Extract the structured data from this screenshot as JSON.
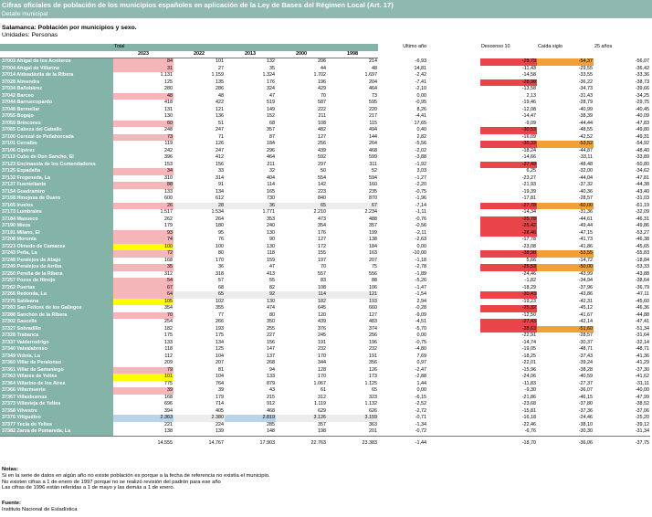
{
  "title": "Cifras oficiales de población de los municipios españoles en aplicación de la Ley de Bases del Régimen Local (Art. 17)",
  "subtitle": "Detalle municipal",
  "table_title": "Salamanca: Población por municipios y sexo.",
  "units": "Unidades: Personas",
  "header": {
    "total": "Total",
    "years": [
      "2023",
      "2022",
      "2013",
      "2000",
      "1998"
    ],
    "last_year": "Último año",
    "decline": "Descenso 10",
    "drop": "Caída siglo",
    "years25": "25 años"
  },
  "colors": {
    "header_teal": "#84b3a8",
    "highlight_pink": "#f4b6b9",
    "highlight_yellow": "#ffff00",
    "highlight_blue": "#b9d3e8",
    "highlight_red": "#e8444a",
    "highlight_orange": "#f0a036"
  },
  "rows": [
    {
      "name": "37003 Ahigal de los Aceiteros",
      "v": [
        "84",
        "101",
        "132",
        "206",
        "214"
      ],
      "m": [
        "-6,93",
        "-28,79",
        "-54,37",
        "-56,07"
      ],
      "hl": "pink",
      "mhl": {
        "1": "red",
        "2": "orange"
      }
    },
    {
      "name": "37004 Ahigal de Villarino",
      "v": [
        "31",
        "27",
        "35",
        "44",
        "48"
      ],
      "m": [
        "14,81",
        "-11,43",
        "-29,55",
        "-36,42"
      ],
      "hl": "pink"
    },
    {
      "name": "37014 Aldeadávila de la Ribera",
      "v": [
        "1.131",
        "1.159",
        "1.324",
        "1.702",
        "1.697"
      ],
      "m": [
        "-2,42",
        "-14,58",
        "-33,55",
        "-33,36"
      ]
    },
    {
      "name": "37028 Almendra",
      "v": [
        "125",
        "135",
        "176",
        "196",
        "204"
      ],
      "m": [
        "-7,41",
        "-28,98",
        "-36,22",
        "-38,73"
      ],
      "mhl": {
        "1": "red"
      }
    },
    {
      "name": "37034 Bañobárez",
      "v": [
        "280",
        "286",
        "324",
        "429",
        "464"
      ],
      "m": [
        "-2,10",
        "-13,58",
        "-34,73",
        "-39,66"
      ]
    },
    {
      "name": "37042 Barceo",
      "v": [
        "48",
        "48",
        "47",
        "70",
        "73"
      ],
      "m": [
        "0,00",
        "2,13",
        "-31,43",
        "-34,25"
      ],
      "hl": "pink"
    },
    {
      "name": "37044 Barruecopardo",
      "v": [
        "418",
        "422",
        "519",
        "587",
        "595"
      ],
      "m": [
        "-0,95",
        "-19,46",
        "-28,79",
        "-29,75"
      ]
    },
    {
      "name": "37048 Bermellar",
      "v": [
        "131",
        "121",
        "149",
        "222",
        "220"
      ],
      "m": [
        "8,26",
        "-12,08",
        "-40,99",
        "-40,45"
      ]
    },
    {
      "name": "37055 Bogajo",
      "v": [
        "130",
        "136",
        "152",
        "211",
        "217"
      ],
      "m": [
        "-4,41",
        "-14,47",
        "-38,39",
        "-40,09"
      ]
    },
    {
      "name": "37059 Brincones",
      "v": [
        "60",
        "51",
        "68",
        "108",
        "115"
      ],
      "m": [
        "17,65",
        "-9,09",
        "-44,44",
        "-47,83"
      ],
      "hl": "pink"
    },
    {
      "name": "37065 Cabeza del Caballo",
      "v": [
        "248",
        "247",
        "357",
        "482",
        "494"
      ],
      "m": [
        "0,40",
        "-30,53",
        "-48,55",
        "-49,80"
      ],
      "mhl": {
        "1": "red"
      }
    },
    {
      "name": "37100 Cerezal de Peñahorcada",
      "v": [
        "73",
        "71",
        "87",
        "127",
        "144"
      ],
      "m": [
        "2,82",
        "-16,09",
        "-42,52",
        "-49,31"
      ],
      "hl": "pink"
    },
    {
      "name": "37101 Cerralbo",
      "v": [
        "119",
        "126",
        "184",
        "256",
        "264"
      ],
      "m": [
        "-5,56",
        "-35,33",
        "-53,52",
        "-54,92"
      ],
      "mhl": {
        "1": "red",
        "2": "orange"
      }
    },
    {
      "name": "37106 Cipérez",
      "v": [
        "242",
        "247",
        "296",
        "439",
        "468"
      ],
      "m": [
        "-2,02",
        "-18,24",
        "-44,87",
        "-48,40"
      ]
    },
    {
      "name": "37113 Cubo de Don Sancho, El",
      "v": [
        "396",
        "412",
        "464",
        "592",
        "599"
      ],
      "m": [
        "-3,88",
        "-14,66",
        "-33,11",
        "-33,89"
      ]
    },
    {
      "name": "37123 Encinasola de los Comendadores",
      "v": [
        "153",
        "156",
        "211",
        "297",
        "311"
      ],
      "m": [
        "-1,92",
        "-27,49",
        "-48,48",
        "-50,80"
      ],
      "mhl": {
        "1": "red"
      }
    },
    {
      "name": "37125 Espadaña",
      "v": [
        "34",
        "33",
        "32",
        "50",
        "52"
      ],
      "m": [
        "3,03",
        "6,25",
        "-32,00",
        "-34,62"
      ],
      "hl": "pink"
    },
    {
      "name": "37132 Fregeneda, La",
      "v": [
        "310",
        "314",
        "404",
        "554",
        "594"
      ],
      "m": [
        "-1,27",
        "-23,27",
        "-44,04",
        "-47,81"
      ]
    },
    {
      "name": "37137 Fuenteliante",
      "v": [
        "88",
        "91",
        "114",
        "142",
        "160"
      ],
      "m": [
        "-2,20",
        "-21,93",
        "-37,32",
        "-44,38"
      ],
      "hl": "pink"
    },
    {
      "name": "37154 Guadramiro",
      "v": [
        "133",
        "134",
        "165",
        "223",
        "235"
      ],
      "m": [
        "-0,75",
        "-19,39",
        "-40,36",
        "-43,40"
      ]
    },
    {
      "name": "37158 Hinojosa de Duero",
      "v": [
        "600",
        "612",
        "730",
        "840",
        "870"
      ],
      "m": [
        "-1,96",
        "-17,81",
        "-28,57",
        "-31,03"
      ]
    },
    {
      "name": "37165 Iruelos",
      "v": [
        "26",
        "28",
        "36",
        "65",
        "67"
      ],
      "m": [
        "-7,14",
        "-27,78",
        "-60,00",
        "-61,19"
      ],
      "hl": "pink",
      "alt": true,
      "mhl": {
        "1": "red",
        "2": "orange"
      }
    },
    {
      "name": "37173 Lumbrales",
      "v": [
        "1.517",
        "1.534",
        "1.771",
        "2.210",
        "2.234"
      ],
      "m": [
        "-1,11",
        "-14,34",
        "-31,36",
        "-32,09"
      ]
    },
    {
      "name": "37184 Masueco",
      "v": [
        "262",
        "264",
        "353",
        "473",
        "488"
      ],
      "m": [
        "-0,76",
        "-25,78",
        "-44,61",
        "-46,31"
      ],
      "mhl": {
        "1": "red"
      }
    },
    {
      "name": "37190 Mieza",
      "v": [
        "179",
        "180",
        "240",
        "354",
        "357"
      ],
      "m": [
        "-0,56",
        "-25,42",
        "-49,44",
        "-49,86"
      ],
      "mhl": {
        "1": "red"
      }
    },
    {
      "name": "37191 Milano, El",
      "v": [
        "93",
        "95",
        "130",
        "176",
        "199"
      ],
      "m": [
        "-2,11",
        "-28,46",
        "-47,15",
        "-53,27"
      ],
      "hl": "pink",
      "mhl": {
        "1": "red"
      }
    },
    {
      "name": "37208 Moronta",
      "v": [
        "74",
        "76",
        "90",
        "127",
        "138"
      ],
      "m": [
        "-2,63",
        "-17,78",
        "-41,73",
        "-46,38"
      ],
      "hl": "pink"
    },
    {
      "name": "37223 Olmedo de Camaces",
      "v": [
        "100",
        "100",
        "130",
        "172",
        "184"
      ],
      "m": [
        "0,00",
        "-23,08",
        "-41,86",
        "-45,65"
      ],
      "hl": "yellow"
    },
    {
      "name": "37243 Peña, La",
      "v": [
        "72",
        "80",
        "118",
        "155",
        "163"
      ],
      "m": [
        "-10,00",
        "-38,98",
        "-53,55",
        "-55,83"
      ],
      "hl": "pink",
      "mhl": {
        "1": "red",
        "2": "orange"
      }
    },
    {
      "name": "37248 Peralejos de Abajo",
      "v": [
        "168",
        "170",
        "159",
        "197",
        "207"
      ],
      "m": [
        "-1,18",
        "5,66",
        "-14,72",
        "-18,84"
      ]
    },
    {
      "name": "37249 Peralejos de Arriba",
      "v": [
        "35",
        "36",
        "47",
        "70",
        "75"
      ],
      "m": [
        "-2,78",
        "-25,53",
        "-50,00",
        "-53,33"
      ],
      "hl": "pink",
      "mhl": {
        "1": "red",
        "2": "orange"
      }
    },
    {
      "name": "37250 Pereña de la Ribera",
      "v": [
        "312",
        "318",
        "413",
        "557",
        "556"
      ],
      "m": [
        "-1,89",
        "-24,46",
        "-43,99",
        "-43,88"
      ]
    },
    {
      "name": "37257 Pozos de Hinojo",
      "v": [
        "54",
        "57",
        "55",
        "83",
        "88"
      ],
      "m": [
        "-5,26",
        "-1,82",
        "-34,94",
        "-38,64"
      ],
      "hl": "pink"
    },
    {
      "name": "37262 Puertas",
      "v": [
        "67",
        "68",
        "82",
        "108",
        "106"
      ],
      "m": [
        "-1,47",
        "-18,29",
        "-37,96",
        "-36,79"
      ],
      "hl": "pink"
    },
    {
      "name": "37266 Redonda, La",
      "v": [
        "64",
        "65",
        "92",
        "114",
        "121"
      ],
      "m": [
        "-1,54",
        "-30,43",
        "-43,86",
        "-47,11"
      ],
      "hl": "pink",
      "alt": true,
      "mhl": {
        "1": "red"
      }
    },
    {
      "name": "37275 Saldeana",
      "v": [
        "105",
        "102",
        "130",
        "182",
        "193"
      ],
      "m": [
        "2,94",
        "-19,23",
        "-42,31",
        "-45,60"
      ],
      "hl": "yellow"
    },
    {
      "name": "37283 San Felices de los Gallegos",
      "v": [
        "354",
        "355",
        "474",
        "645",
        "660"
      ],
      "m": [
        "-0,28",
        "-25,32",
        "-45,12",
        "-46,36"
      ],
      "mhl": {
        "1": "red"
      }
    },
    {
      "name": "37288 Sanchón de la Ribera",
      "v": [
        "70",
        "77",
        "80",
        "120",
        "127"
      ],
      "m": [
        "-9,09",
        "-12,50",
        "-41,67",
        "-44,88"
      ],
      "hl": "pink"
    },
    {
      "name": "37302 Saucelle",
      "v": [
        "254",
        "266",
        "350",
        "439",
        "483"
      ],
      "m": [
        "-4,51",
        "-27,43",
        "-42,14",
        "-47,41"
      ],
      "mhl": {
        "1": "red"
      }
    },
    {
      "name": "37327 Sobradillo",
      "v": [
        "182",
        "193",
        "255",
        "376",
        "374"
      ],
      "m": [
        "-5,70",
        "-28,63",
        "-51,60",
        "-51,34"
      ],
      "mhl": {
        "1": "red",
        "2": "orange"
      }
    },
    {
      "name": "37328 Trabanca",
      "v": [
        "175",
        "175",
        "227",
        "245",
        "256"
      ],
      "m": [
        "0,00",
        "-22,91",
        "-28,57",
        "-31,64"
      ]
    },
    {
      "name": "37337 Valderrodrigo",
      "v": [
        "133",
        "134",
        "156",
        "191",
        "196"
      ],
      "m": [
        "-0,75",
        "-14,74",
        "-30,37",
        "-32,14"
      ]
    },
    {
      "name": "37340 Valsalabroso",
      "v": [
        "118",
        "125",
        "147",
        "232",
        "232"
      ],
      "m": [
        "-4,80",
        "-19,05",
        "-48,71",
        "-48,71"
      ]
    },
    {
      "name": "37349 Vidola, La",
      "v": [
        "112",
        "104",
        "137",
        "170",
        "191"
      ],
      "m": [
        "7,69",
        "-18,25",
        "-37,43",
        "-41,36"
      ]
    },
    {
      "name": "37360 Villar de Peralonso",
      "v": [
        "209",
        "207",
        "268",
        "344",
        "356"
      ],
      "m": [
        "0,97",
        "-22,01",
        "-39,24",
        "-41,29"
      ]
    },
    {
      "name": "37361 Villar de Samaniego",
      "v": [
        "79",
        "81",
        "94",
        "128",
        "126"
      ],
      "m": [
        "-2,47",
        "-15,96",
        "-38,28",
        "-37,30"
      ],
      "hl": "pink"
    },
    {
      "name": "37363 Villares de Yeltes",
      "v": [
        "101",
        "104",
        "133",
        "170",
        "173"
      ],
      "m": [
        "-2,88",
        "-24,06",
        "-40,59",
        "-41,62"
      ],
      "hl": "yellow"
    },
    {
      "name": "37364 Villarino de los Aires",
      "v": [
        "775",
        "764",
        "879",
        "1.067",
        "1.125"
      ],
      "m": [
        "1,44",
        "-11,83",
        "-27,37",
        "-31,11"
      ]
    },
    {
      "name": "37366 Villarmuerto",
      "v": [
        "39",
        "39",
        "43",
        "61",
        "65"
      ],
      "m": [
        "0,00",
        "-9,30",
        "-36,07",
        "-40,00"
      ],
      "hl": "pink"
    },
    {
      "name": "37367 Villasbuenas",
      "v": [
        "168",
        "179",
        "215",
        "312",
        "323"
      ],
      "m": [
        "-6,15",
        "-21,86",
        "-46,15",
        "-47,99"
      ]
    },
    {
      "name": "37373 Villavieja de Yeltes",
      "v": [
        "696",
        "714",
        "912",
        "1.119",
        "1.132"
      ],
      "m": [
        "-2,52",
        "-23,68",
        "-37,80",
        "-38,52"
      ]
    },
    {
      "name": "37358 Vilvestre",
      "v": [
        "394",
        "405",
        "468",
        "629",
        "626"
      ],
      "m": [
        "-2,72",
        "-15,81",
        "-37,36",
        "-37,06"
      ]
    },
    {
      "name": "37375 Vitigudino",
      "v": [
        "2.363",
        "2.380",
        "2.819",
        "3.126",
        "3.159"
      ],
      "m": [
        "-0,71",
        "-16,18",
        "-24,46",
        "-25,20"
      ],
      "hl": "blue",
      "alt": true,
      "mhl": {
        "1": "gray"
      }
    },
    {
      "name": "37377 Yecla de Yeltes",
      "v": [
        "221",
        "224",
        "285",
        "357",
        "363"
      ],
      "m": [
        "-1,34",
        "-22,46",
        "-38,10",
        "-39,12"
      ]
    },
    {
      "name": "37382 Zarza de Pumareda, La",
      "v": [
        "138",
        "139",
        "148",
        "198",
        "201"
      ],
      "m": [
        "-0,72",
        "-6,76",
        "-30,30",
        "-31,34"
      ]
    }
  ],
  "totals": {
    "v": [
      "14.555",
      "14.767",
      "17.903",
      "22.763",
      "23.383"
    ],
    "m": [
      "-1,44",
      "-18,70",
      "-36,06",
      "-37,75"
    ]
  },
  "notes_title": "Notas:",
  "notes": [
    "Si en la serie de datos en algún año no existe población es porque a la fecha de referencia no existía el municipio.",
    "No existen cifras a 1 de enero de 1997 porque no se realizó revisión del padrón para ese año",
    "Las cifras de 1996 están referidas a 1 de mayo y las demás a 1 de enero."
  ],
  "source_title": "Fuente:",
  "source": "Instituto Nacional de Estadística"
}
